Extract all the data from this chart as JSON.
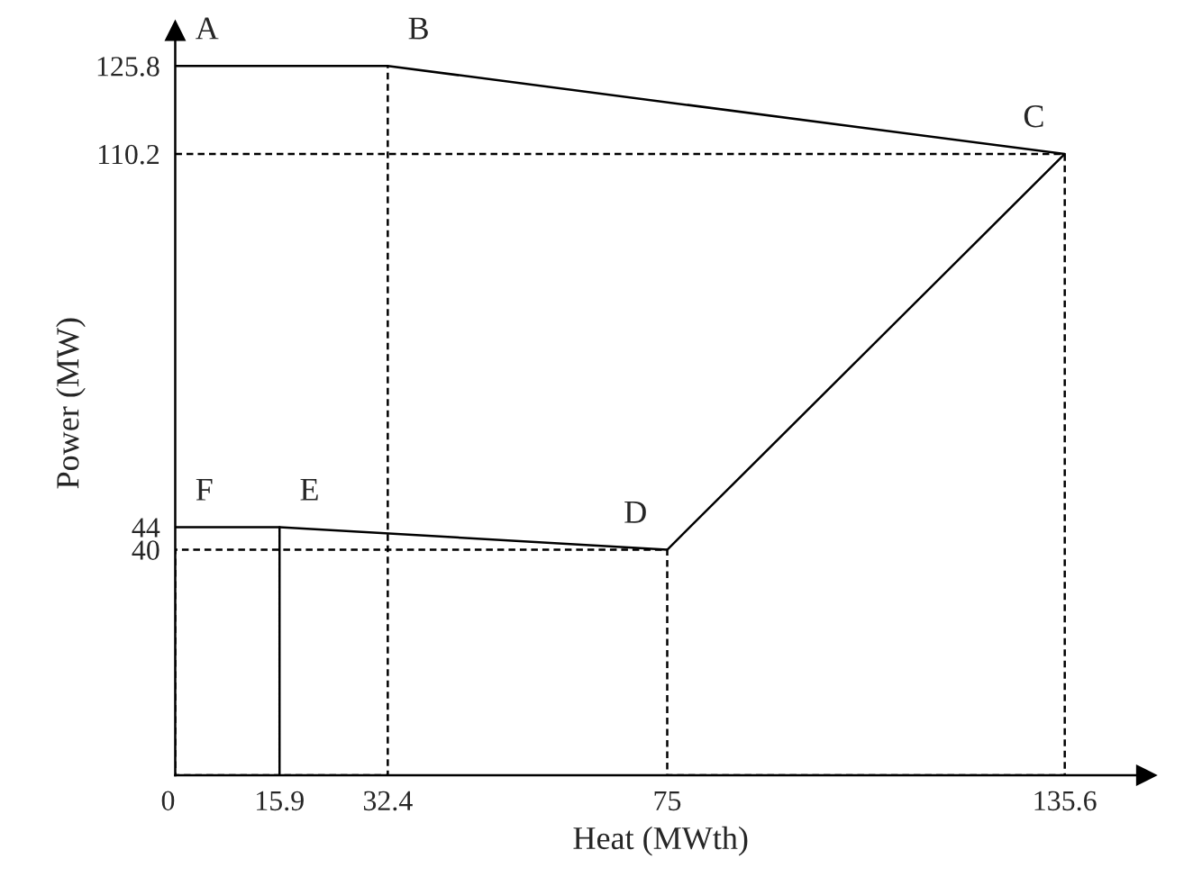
{
  "chart_data": {
    "type": "line",
    "xlabel": "Heat (MWth)",
    "ylabel": "Power (MW)",
    "xlim": [
      0,
      148
    ],
    "ylim": [
      0,
      132
    ],
    "xticks": [
      0,
      15.9,
      32.4,
      75,
      135.6
    ],
    "yticks": [
      40,
      44,
      110.2,
      125.8
    ],
    "grid": false,
    "legend": false,
    "marker": "none",
    "series": [
      {
        "color": "#000000",
        "line_style": "solid",
        "x": [
          0,
          32.4,
          135.6,
          75,
          15.9,
          0
        ],
        "values": [
          125.8,
          125.8,
          110.2,
          40,
          44,
          44
        ]
      },
      {
        "color": "#000000",
        "line_style": "dashed",
        "x": [
          0,
          135.6,
          135.6,
          75,
          75,
          0,
          0,
          15.9,
          15.9,
          15.9,
          32.4,
          32.4
        ],
        "values": [
          110.2,
          110.2,
          0,
          0,
          40,
          40,
          0,
          0,
          44,
          0,
          0,
          125.8
        ]
      }
    ],
    "annotations": [
      {
        "text": "A",
        "x": 0,
        "y": 125.8
      },
      {
        "text": "B",
        "x": 32.4,
        "y": 125.8
      },
      {
        "text": "C",
        "x": 135.6,
        "y": 110.2
      },
      {
        "text": "D",
        "x": 75,
        "y": 40
      },
      {
        "text": "E",
        "x": 15.9,
        "y": 44
      },
      {
        "text": "F",
        "x": 0,
        "y": 44
      }
    ]
  }
}
